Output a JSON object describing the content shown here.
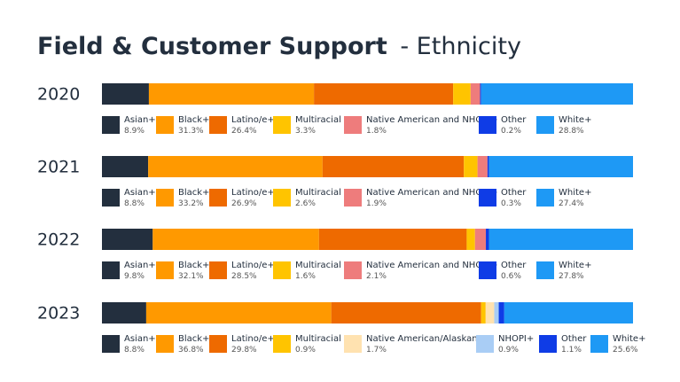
{
  "title": "Field & Customer Support",
  "subtitle": "- Ethnicity",
  "chart_data": [
    {
      "type": "bar",
      "orientation": "horizontal",
      "stacked": true,
      "title": "2020",
      "xlim": [
        0,
        100.7
      ],
      "series": [
        {
          "name": "Asian+",
          "color": "#232f3e",
          "values": [
            8.9
          ],
          "value_labels": [
            "8.9%"
          ]
        },
        {
          "name": "Black+",
          "color": "#ff9900",
          "values": [
            31.3
          ],
          "value_labels": [
            "31.3%"
          ]
        },
        {
          "name": "Latino/e+",
          "color": "#ee6a00",
          "values": [
            26.4
          ],
          "value_labels": [
            "26.4%"
          ]
        },
        {
          "name": "Multiracial",
          "color": "#ffc400",
          "values": [
            3.3
          ],
          "value_labels": [
            "3.3%"
          ]
        },
        {
          "name": "Native American and NHOPI+",
          "color": "#ee7c7c",
          "values": [
            1.8
          ],
          "value_labels": [
            "1.8%"
          ]
        },
        {
          "name": "Other",
          "color": "#0f3ce6",
          "values": [
            0.2
          ],
          "value_labels": [
            "0.2%"
          ]
        },
        {
          "name": "White+",
          "color": "#1e99f5",
          "values": [
            28.8
          ],
          "value_labels": [
            "28.8%"
          ]
        }
      ]
    },
    {
      "type": "bar",
      "orientation": "horizontal",
      "stacked": true,
      "title": "2021",
      "xlim": [
        0,
        101.1
      ],
      "series": [
        {
          "name": "Asian+",
          "color": "#232f3e",
          "values": [
            8.8
          ],
          "value_labels": [
            "8.8%"
          ]
        },
        {
          "name": "Black+",
          "color": "#ff9900",
          "values": [
            33.2
          ],
          "value_labels": [
            "33.2%"
          ]
        },
        {
          "name": "Latino/e+",
          "color": "#ee6a00",
          "values": [
            26.9
          ],
          "value_labels": [
            "26.9%"
          ]
        },
        {
          "name": "Multiracial",
          "color": "#ffc400",
          "values": [
            2.6
          ],
          "value_labels": [
            "2.6%"
          ]
        },
        {
          "name": "Native American and NHOPI+",
          "color": "#ee7c7c",
          "values": [
            1.9
          ],
          "value_labels": [
            "1.9%"
          ]
        },
        {
          "name": "Other",
          "color": "#0f3ce6",
          "values": [
            0.3
          ],
          "value_labels": [
            "0.3%"
          ]
        },
        {
          "name": "White+",
          "color": "#1e99f5",
          "values": [
            27.4
          ],
          "value_labels": [
            "27.4%"
          ]
        }
      ]
    },
    {
      "type": "bar",
      "orientation": "horizontal",
      "stacked": true,
      "title": "2022",
      "xlim": [
        0,
        102.5
      ],
      "series": [
        {
          "name": "Asian+",
          "color": "#232f3e",
          "values": [
            9.8
          ],
          "value_labels": [
            "9.8%"
          ]
        },
        {
          "name": "Black+",
          "color": "#ff9900",
          "values": [
            32.1
          ],
          "value_labels": [
            "32.1%"
          ]
        },
        {
          "name": "Latino/e+",
          "color": "#ee6a00",
          "values": [
            28.5
          ],
          "value_labels": [
            "28.5%"
          ]
        },
        {
          "name": "Multiracial",
          "color": "#ffc400",
          "values": [
            1.6
          ],
          "value_labels": [
            "1.6%"
          ]
        },
        {
          "name": "Native American and NHOPI+",
          "color": "#ee7c7c",
          "values": [
            2.1
          ],
          "value_labels": [
            "2.1%"
          ]
        },
        {
          "name": "Other",
          "color": "#0f3ce6",
          "values": [
            0.6
          ],
          "value_labels": [
            "0.6%"
          ]
        },
        {
          "name": "White+",
          "color": "#1e99f5",
          "values": [
            27.8
          ],
          "value_labels": [
            "27.8%"
          ]
        }
      ]
    },
    {
      "type": "bar",
      "orientation": "horizontal",
      "stacked": true,
      "title": "2023",
      "xlim": [
        0,
        105.6
      ],
      "series": [
        {
          "name": "Asian+",
          "color": "#232f3e",
          "values": [
            8.8
          ],
          "value_labels": [
            "8.8%"
          ]
        },
        {
          "name": "Black+",
          "color": "#ff9900",
          "values": [
            36.8
          ],
          "value_labels": [
            "36.8%"
          ]
        },
        {
          "name": "Latino/e+",
          "color": "#ee6a00",
          "values": [
            29.8
          ],
          "value_labels": [
            "29.8%"
          ]
        },
        {
          "name": "Multiracial",
          "color": "#ffc400",
          "values": [
            0.9
          ],
          "value_labels": [
            "0.9%"
          ]
        },
        {
          "name": "Native American/Alaskan+",
          "color": "#ffe2b0",
          "values": [
            1.7
          ],
          "value_labels": [
            "1.7%"
          ]
        },
        {
          "name": "NHOPI+",
          "color": "#a9cdf5",
          "values": [
            0.9
          ],
          "value_labels": [
            "0.9%"
          ]
        },
        {
          "name": "Other",
          "color": "#0f3ce6",
          "values": [
            1.1
          ],
          "value_labels": [
            "1.1%"
          ]
        },
        {
          "name": "White+",
          "color": "#1e99f5",
          "values": [
            25.6
          ],
          "value_labels": [
            "25.6%"
          ]
        }
      ]
    }
  ]
}
